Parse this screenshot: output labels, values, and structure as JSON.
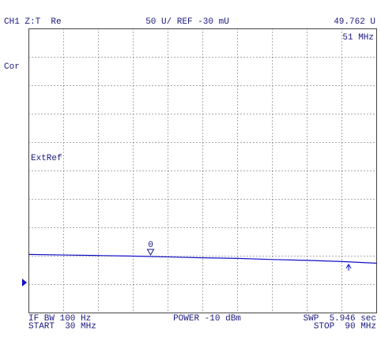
{
  "chart_data": {
    "type": "line",
    "header": {
      "channel": "CH1 Z:T  Re",
      "scale": "50 U/ REF -30 mU",
      "marker_value": "49.762 U",
      "marker_freq": "51 MHz"
    },
    "side_labels": {
      "correction": "Cor",
      "reference": "ExtRef"
    },
    "footer": {
      "if_bw": "IF BW 100 Hz",
      "start": "START  30 MHz",
      "power": "POWER -10 dBm",
      "sweep": "SWP  5.946 sec",
      "stop": "STOP  90 MHz"
    },
    "x": [
      30,
      36,
      42,
      48,
      54,
      60,
      66,
      72,
      78,
      84,
      90
    ],
    "series": [
      {
        "color": "#1010c8",
        "values": [
          2.06,
          2.04,
          2.02,
          2.0,
          1.97,
          1.94,
          1.92,
          1.88,
          1.85,
          1.81,
          1.75
        ]
      }
    ],
    "marker": {
      "label": "0",
      "x": 51
    },
    "xlim": [
      30,
      90
    ],
    "ylim": [
      0,
      10
    ]
  }
}
